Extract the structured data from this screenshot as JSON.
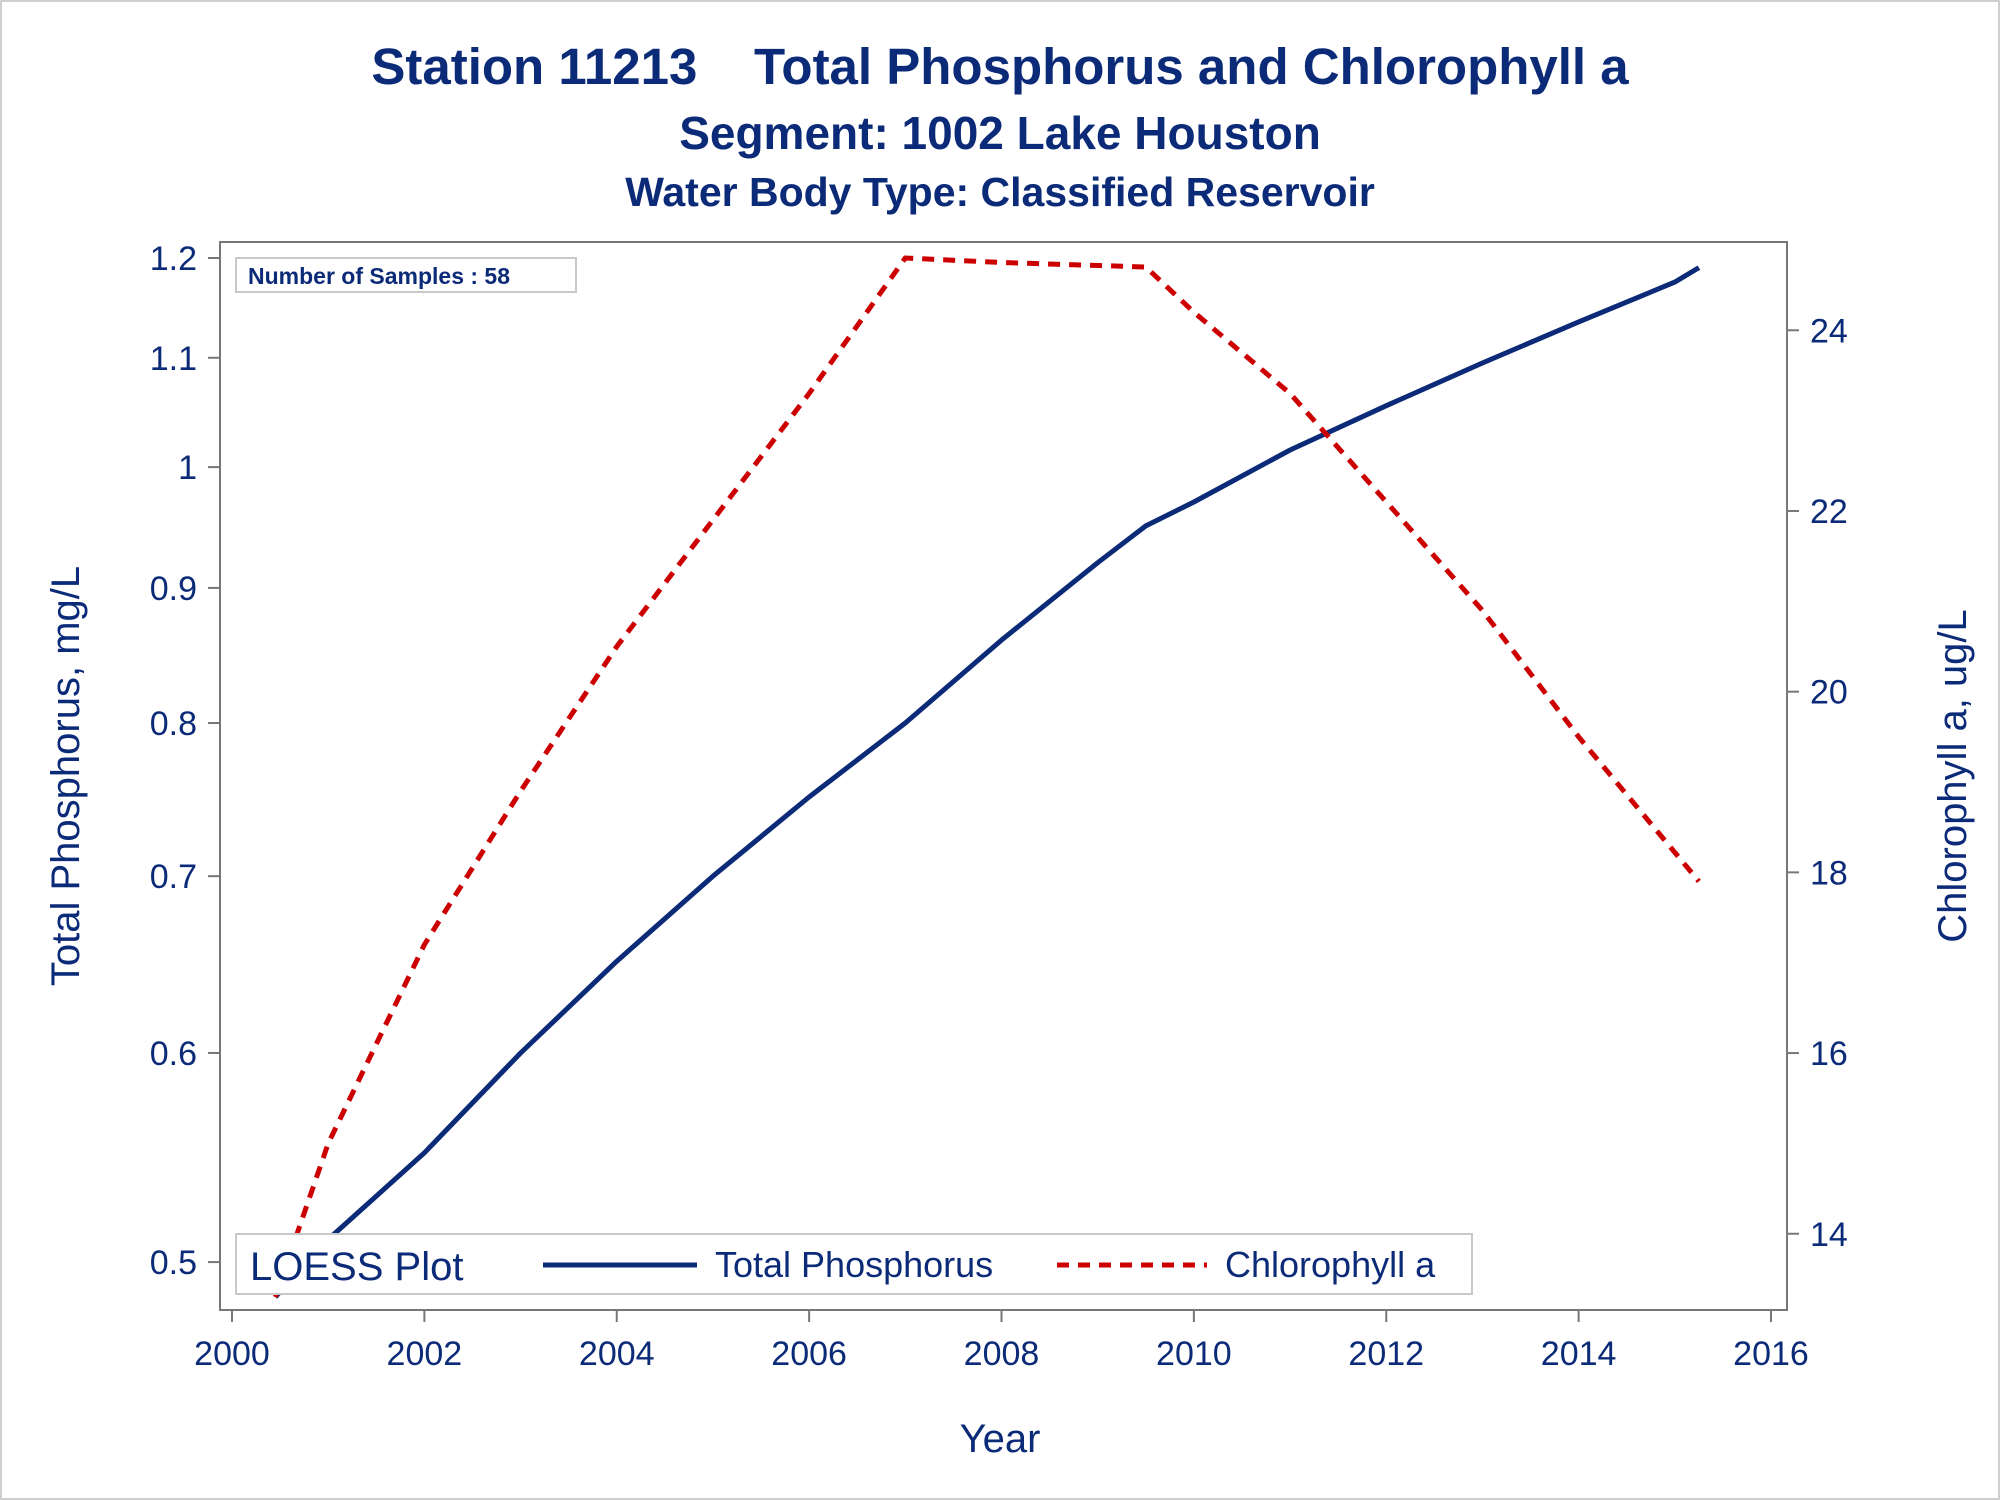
{
  "titles": {
    "line1": "Station 11213    Total Phosphorus and Chlorophyll a",
    "line2": "Segment: 1002  Lake Houston",
    "line3": "Water Body Type: Classified Reservoir"
  },
  "inset": {
    "samples_text": "Number of Samples : 58"
  },
  "legend": {
    "title": "LOESS Plot",
    "items": [
      {
        "label": "Total Phosphorus",
        "color": "#0b2a77",
        "style": "solid"
      },
      {
        "label": "Chlorophyll a",
        "color": "#cc0000",
        "style": "dashed"
      }
    ]
  },
  "chart_data": {
    "type": "line",
    "xlabel": "Year",
    "ylabel_left": "Total Phosphorus, mg/L",
    "ylabel_right": "Chlorophyll a, ug/L",
    "xlim": [
      2000,
      2016
    ],
    "y_left_scale": "log",
    "y_left_lim": [
      0.485,
      1.2
    ],
    "y_right_lim": [
      13.3,
      24.8
    ],
    "x_ticks": [
      2000,
      2002,
      2004,
      2006,
      2008,
      2010,
      2012,
      2014,
      2016
    ],
    "y_left_ticks": [
      0.5,
      0.6,
      0.7,
      0.8,
      0.9,
      1,
      1.1,
      1.2
    ],
    "y_left_tick_labels": [
      "0.5",
      "0.6",
      "0.7",
      "0.8",
      "0.9",
      "1",
      "1.1",
      "1.2"
    ],
    "y_right_ticks": [
      14,
      16,
      18,
      20,
      22,
      24
    ],
    "legend_position": "bottom-left",
    "series": [
      {
        "name": "Total Phosphorus",
        "axis": "left",
        "color": "#0b2a77",
        "style": "solid",
        "x": [
          2000.45,
          2001,
          2002,
          2003,
          2004,
          2005,
          2006,
          2007,
          2008,
          2009,
          2009.5,
          2010,
          2011,
          2012,
          2013,
          2014,
          2015,
          2015.25
        ],
        "y": [
          0.485,
          0.51,
          0.55,
          0.6,
          0.65,
          0.7,
          0.75,
          0.8,
          0.86,
          0.92,
          0.95,
          0.97,
          1.015,
          1.055,
          1.095,
          1.135,
          1.175,
          1.19
        ]
      },
      {
        "name": "Chlorophyll a",
        "axis": "right",
        "color": "#cc0000",
        "style": "dashed",
        "x": [
          2000.45,
          2001,
          2002,
          2003,
          2004,
          2005,
          2006,
          2007,
          2008,
          2009.5,
          2010,
          2011,
          2012,
          2013,
          2014,
          2015.25
        ],
        "y": [
          13.3,
          15.0,
          17.2,
          18.9,
          20.5,
          21.9,
          23.3,
          24.8,
          24.75,
          24.7,
          24.2,
          23.3,
          22.1,
          20.9,
          19.5,
          17.9
        ]
      }
    ]
  }
}
